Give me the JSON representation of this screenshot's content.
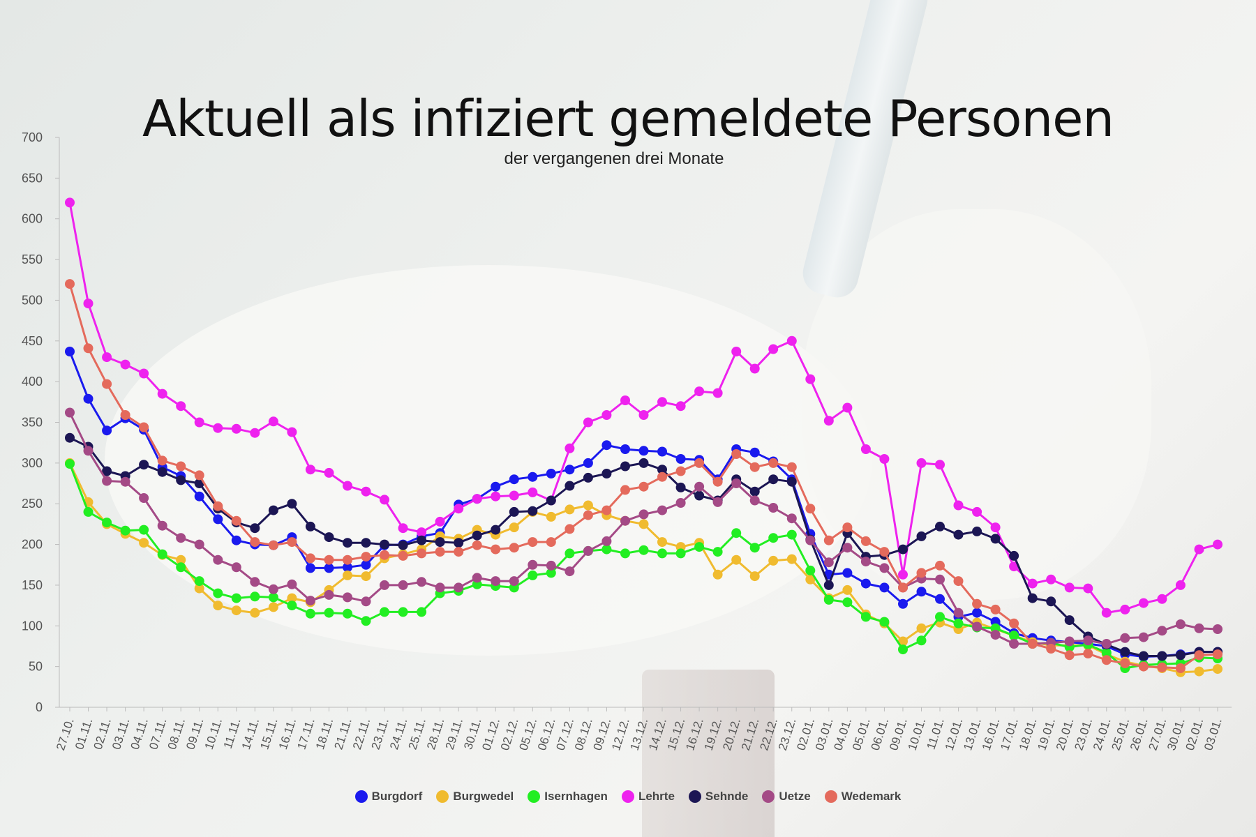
{
  "chart_data": {
    "type": "line",
    "title": "Aktuell als infiziert gemeldete Personen",
    "subtitle": "der vergangenen drei Monate",
    "xlabel": "",
    "ylabel": "",
    "ylim": [
      0,
      700
    ],
    "yticks": [
      0,
      50,
      100,
      150,
      200,
      250,
      300,
      350,
      400,
      450,
      500,
      550,
      600,
      650,
      700
    ],
    "grid": false,
    "legend_position": "bottom",
    "categories": [
      "27.10.",
      "01.11.",
      "02.11.",
      "03.11.",
      "04.11.",
      "07.11.",
      "08.11.",
      "09.11.",
      "10.11.",
      "11.11.",
      "14.11.",
      "15.11.",
      "16.11.",
      "17.11.",
      "18.11.",
      "21.11.",
      "22.11.",
      "23.11.",
      "24.11.",
      "25.11.",
      "28.11.",
      "29.11.",
      "30.11.",
      "01.12.",
      "02.12.",
      "05.12.",
      "06.12.",
      "07.12.",
      "08.12.",
      "09.12.",
      "12.12.",
      "13.12.",
      "14.12.",
      "15.12.",
      "16.12.",
      "19.12.",
      "20.12.",
      "21.12.",
      "22.12.",
      "23.12.",
      "02.01.",
      "03.01.",
      "04.01.",
      "05.01.",
      "06.01.",
      "09.01.",
      "10.01.",
      "11.01.",
      "12.01.",
      "13.01.",
      "16.01.",
      "17.01.",
      "18.01.",
      "19.01.",
      "20.01.",
      "23.01.",
      "24.01.",
      "25.01.",
      "26.01.",
      "27.01.",
      "30.01.",
      "02.01.",
      "03.01."
    ],
    "series": [
      {
        "name": "Burgdorf",
        "color": "#1a1aee",
        "values": [
          437,
          379,
          340,
          355,
          341,
          295,
          284,
          259,
          231,
          205,
          200,
          199,
          209,
          171,
          171,
          172,
          175,
          199,
          200,
          210,
          214,
          249,
          256,
          271,
          280,
          283,
          287,
          292,
          300,
          322,
          317,
          315,
          314,
          305,
          304,
          280,
          317,
          313,
          302,
          280,
          213,
          163,
          165,
          152,
          147,
          127,
          142,
          133,
          111,
          116,
          105,
          91,
          85,
          82,
          80,
          78,
          75,
          65,
          62,
          63,
          65,
          68,
          68
        ]
      },
      {
        "name": "Burgwedel",
        "color": "#f0bb2f",
        "values": [
          300,
          252,
          225,
          213,
          202,
          187,
          181,
          146,
          125,
          119,
          116,
          123,
          134,
          129,
          144,
          162,
          161,
          183,
          188,
          194,
          210,
          207,
          218,
          212,
          221,
          240,
          234,
          243,
          248,
          236,
          229,
          225,
          203,
          197,
          202,
          163,
          181,
          161,
          180,
          182,
          157,
          134,
          144,
          114,
          103,
          81,
          97,
          104,
          96,
          104,
          96,
          88,
          80,
          76,
          76,
          76,
          65,
          56,
          51,
          48,
          43,
          44,
          47
        ]
      },
      {
        "name": "Isernhagen",
        "color": "#22ee22",
        "values": [
          299,
          240,
          227,
          217,
          218,
          188,
          172,
          155,
          140,
          134,
          136,
          135,
          125,
          115,
          116,
          115,
          106,
          117,
          117,
          117,
          140,
          143,
          151,
          149,
          147,
          162,
          165,
          189,
          192,
          194,
          189,
          193,
          189,
          189,
          197,
          191,
          214,
          196,
          208,
          212,
          168,
          132,
          129,
          111,
          105,
          71,
          82,
          111,
          103,
          98,
          97,
          88,
          78,
          79,
          74,
          77,
          67,
          48,
          52,
          53,
          54,
          61,
          60
        ]
      },
      {
        "name": "Lehrte",
        "color": "#ee22ee",
        "values": [
          620,
          496,
          430,
          421,
          410,
          385,
          370,
          350,
          343,
          342,
          337,
          351,
          338,
          292,
          288,
          272,
          265,
          255,
          220,
          215,
          228,
          244,
          256,
          259,
          260,
          264,
          254,
          318,
          350,
          359,
          377,
          359,
          375,
          370,
          388,
          386,
          437,
          416,
          440,
          450,
          403,
          352,
          368,
          317,
          305,
          163,
          300,
          298,
          248,
          240,
          221,
          173,
          152,
          157,
          147,
          146,
          116,
          120,
          128,
          133,
          150,
          194,
          200
        ]
      },
      {
        "name": "Sehnde",
        "color": "#1c1654",
        "values": [
          331,
          320,
          290,
          284,
          298,
          289,
          279,
          275,
          244,
          227,
          220,
          242,
          250,
          222,
          209,
          202,
          202,
          200,
          199,
          205,
          203,
          202,
          211,
          218,
          240,
          241,
          254,
          272,
          282,
          287,
          296,
          300,
          292,
          270,
          260,
          254,
          280,
          265,
          280,
          277,
          206,
          150,
          214,
          185,
          187,
          194,
          210,
          222,
          212,
          216,
          207,
          186,
          134,
          130,
          107,
          87,
          77,
          68,
          63,
          63,
          64,
          68,
          68
        ]
      },
      {
        "name": "Uetze",
        "color": "#a44a86",
        "values": [
          362,
          315,
          278,
          277,
          257,
          223,
          208,
          200,
          181,
          172,
          154,
          145,
          151,
          131,
          138,
          135,
          130,
          150,
          150,
          154,
          147,
          147,
          159,
          155,
          155,
          175,
          174,
          167,
          192,
          204,
          229,
          237,
          242,
          251,
          271,
          252,
          275,
          254,
          245,
          232,
          205,
          178,
          196,
          179,
          171,
          147,
          158,
          157,
          116,
          99,
          89,
          78,
          78,
          79,
          81,
          82,
          78,
          85,
          86,
          94,
          102,
          97,
          96
        ]
      },
      {
        "name": "Wedemark",
        "color": "#e46a5c",
        "values": [
          520,
          441,
          397,
          359,
          344,
          303,
          296,
          285,
          247,
          229,
          203,
          199,
          203,
          183,
          181,
          181,
          185,
          187,
          186,
          189,
          191,
          191,
          199,
          194,
          196,
          203,
          203,
          219,
          236,
          242,
          267,
          271,
          283,
          290,
          300,
          277,
          311,
          295,
          300,
          295,
          244,
          205,
          221,
          204,
          191,
          147,
          165,
          174,
          155,
          127,
          120,
          103,
          78,
          72,
          64,
          66,
          58,
          54,
          50,
          49,
          48,
          64,
          65
        ]
      }
    ]
  },
  "legend": {
    "items": [
      "Burgdorf",
      "Burgwedel",
      "Isernhagen",
      "Lehrte",
      "Sehnde",
      "Uetze",
      "Wedemark"
    ]
  }
}
